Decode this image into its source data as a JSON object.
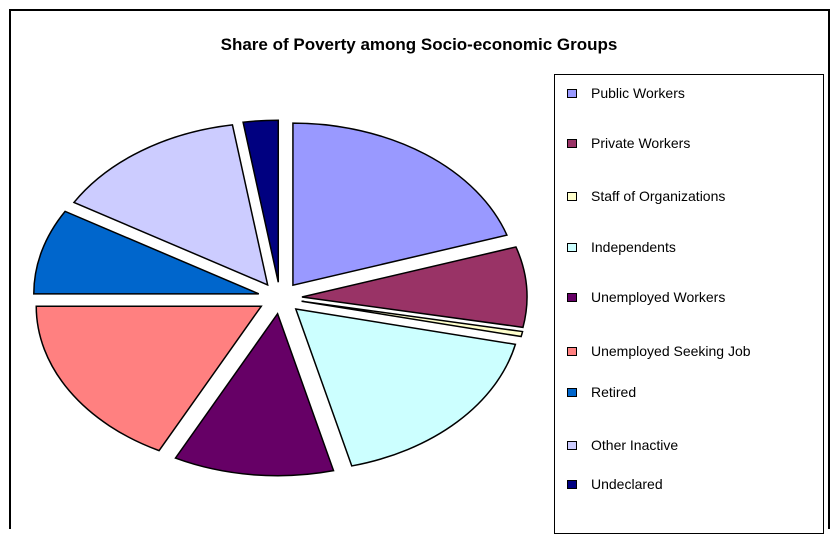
{
  "chart_data": {
    "type": "pie",
    "title": "Share of Poverty among Socio-economic Groups",
    "exploded": true,
    "legend_position": "right",
    "slices": [
      {
        "label": "Public Workers",
        "value": 20.0,
        "color": "#9999ff"
      },
      {
        "label": "Private Workers",
        "value": 8.0,
        "color": "#993366"
      },
      {
        "label": "Staff of Organizations",
        "value": 0.5,
        "color": "#ffffcc"
      },
      {
        "label": "Independents",
        "value": 17.5,
        "color": "#ccffff"
      },
      {
        "label": "Unemployed Workers",
        "value": 11.5,
        "color": "#660066"
      },
      {
        "label": "Unemployed Seeking Job",
        "value": 17.5,
        "color": "#ff8080"
      },
      {
        "label": "Retired",
        "value": 8.5,
        "color": "#0066cc"
      },
      {
        "label": "Other Inactive",
        "value": 14.0,
        "color": "#ccccff"
      },
      {
        "label": "Undeclared",
        "value": 2.5,
        "color": "#000080"
      }
    ]
  }
}
